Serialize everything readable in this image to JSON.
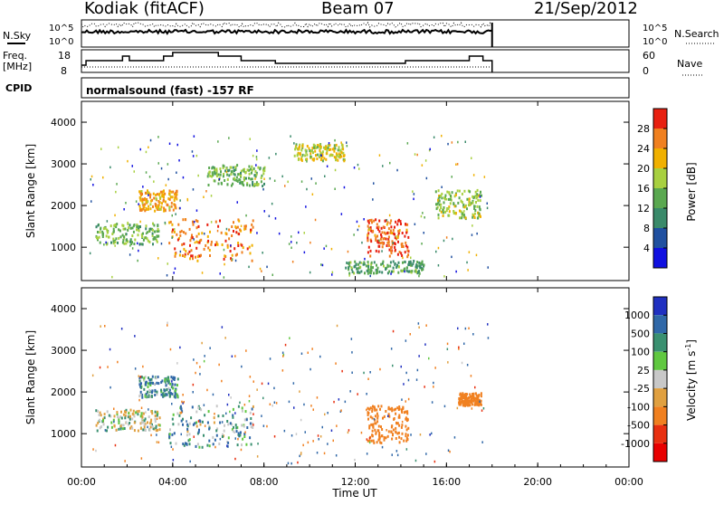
{
  "header": {
    "radar": "Kodiak (fitACF)",
    "beam": "Beam 07",
    "date": "21/Sep/2012"
  },
  "panels": {
    "nsky_label": "N.Sky",
    "nsearch_label": "N.Search",
    "freq_label_line1": "Freq.",
    "freq_label_line2": "[MHz]",
    "nave_label": "Nave",
    "cpid_label": "CPID",
    "cpid_text": "normalsound (fast) -157 RF",
    "noise_left_ticks": [
      "10^5",
      "10^0"
    ],
    "noise_right_ticks": [
      "10^5",
      "10^0"
    ],
    "freq_ticks": [
      "18",
      "8"
    ],
    "nave_ticks": [
      "60",
      "0"
    ]
  },
  "power_colorbar": {
    "label": "Power [dB]",
    "ticks": [
      "28",
      "24",
      "20",
      "16",
      "12",
      "8",
      "4"
    ],
    "colors": [
      "#1010e0",
      "#2050a0",
      "#3a8a6a",
      "#5aa850",
      "#a8d040",
      "#f0b000",
      "#f08020",
      "#e82010"
    ]
  },
  "velocity_colorbar": {
    "label_main": "Velocity [m s",
    "label_exp": "-1",
    "label_close": "]",
    "ticks": [
      "1000",
      "500",
      "100",
      "25",
      "-25",
      "-100",
      "-500",
      "-1000"
    ],
    "colors": [
      "#2030c0",
      "#3068a8",
      "#3a9070",
      "#60c840",
      "#c8c8c8",
      "#e0a040",
      "#f08020",
      "#e83010",
      "#e80000"
    ]
  },
  "axes": {
    "ylabel": "Slant Range [km]",
    "y_ticks": [
      "1000",
      "2000",
      "3000",
      "4000"
    ],
    "xlabel": "Time UT",
    "x_ticks": [
      "00:00",
      "04:00",
      "08:00",
      "12:00",
      "16:00",
      "20:00",
      "00:00"
    ]
  },
  "chart_data": [
    {
      "type": "heatmap",
      "title": "",
      "xlabel": "Time UT",
      "ylabel": "Slant Range [km]",
      "xlim": [
        "00:00",
        "24:00"
      ],
      "ylim": [
        200,
        4500
      ],
      "color_label": "Power [dB]",
      "color_range": [
        0,
        30
      ],
      "blobs": [
        {
          "t": [
            0.6,
            3.4
          ],
          "r": [
            1100,
            1600
          ],
          "value": 14
        },
        {
          "t": [
            2.5,
            4.2
          ],
          "r": [
            1900,
            2400
          ],
          "value": 22
        },
        {
          "t": [
            3.8,
            7.5
          ],
          "r": [
            700,
            1700
          ],
          "value": 24
        },
        {
          "t": [
            5.5,
            8.0
          ],
          "r": [
            2500,
            3000
          ],
          "value": 14
        },
        {
          "t": [
            9.3,
            11.5
          ],
          "r": [
            3100,
            3500
          ],
          "value": 18
        },
        {
          "t": [
            12.5,
            14.3
          ],
          "r": [
            800,
            1700
          ],
          "value": 26
        },
        {
          "t": [
            11.5,
            15.0
          ],
          "r": [
            400,
            700
          ],
          "value": 12
        },
        {
          "t": [
            15.5,
            17.5
          ],
          "r": [
            1700,
            2400
          ],
          "value": 16
        }
      ]
    },
    {
      "type": "heatmap",
      "title": "",
      "xlabel": "Time UT",
      "ylabel": "Slant Range [km]",
      "xlim": [
        "00:00",
        "24:00"
      ],
      "ylim": [
        200,
        4500
      ],
      "color_label": "Velocity [m s-1]",
      "color_range": [
        -1000,
        1000
      ],
      "blobs": [
        {
          "t": [
            0.6,
            3.4
          ],
          "r": [
            1100,
            1600
          ],
          "value": 0
        },
        {
          "t": [
            2.5,
            4.2
          ],
          "r": [
            1900,
            2400
          ],
          "value": 90
        },
        {
          "t": [
            3.8,
            7.5
          ],
          "r": [
            700,
            1700
          ],
          "value": 60
        },
        {
          "t": [
            12.5,
            14.3
          ],
          "r": [
            800,
            1700
          ],
          "value": -250
        },
        {
          "t": [
            16.5,
            17.5
          ],
          "r": [
            1700,
            2000
          ],
          "value": -300
        }
      ]
    }
  ]
}
